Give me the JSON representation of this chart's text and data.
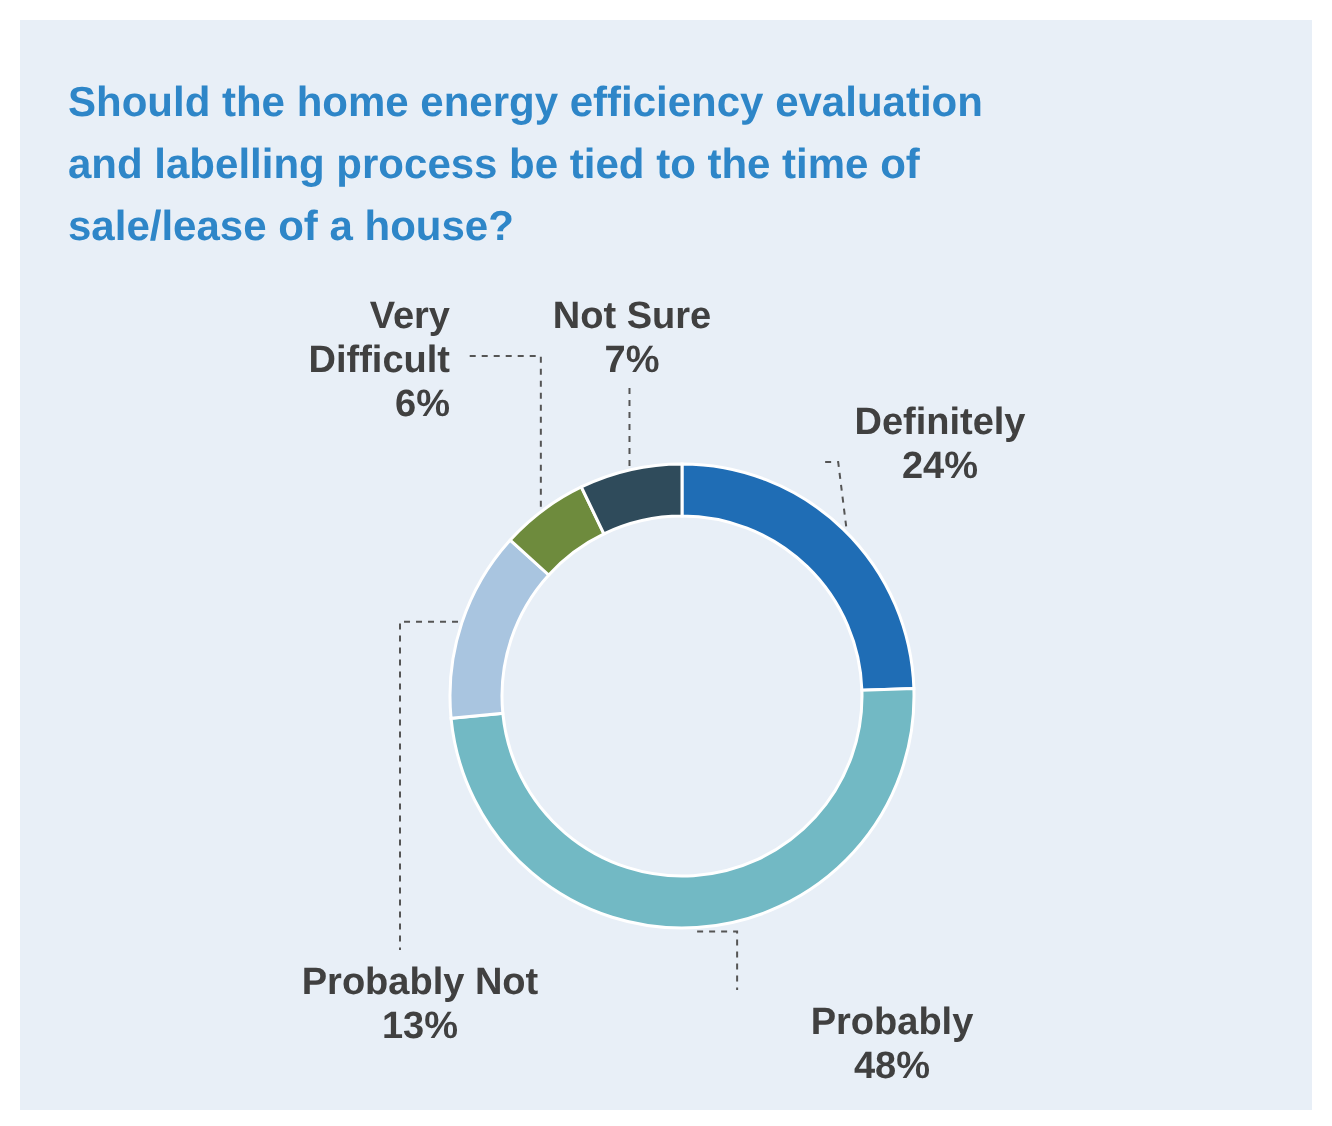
{
  "chart_data": {
    "type": "donut",
    "title": "Should the home energy efficiency evaluation and labelling process be tied to the time of sale/lease of a house?",
    "categories": [
      "Definitely",
      "Probably",
      "Probably Not",
      "Very Difficult",
      "Not Sure"
    ],
    "values": [
      24,
      48,
      13,
      6,
      7
    ],
    "colors": [
      "#1f6db5",
      "#72b9c4",
      "#a9c5e0",
      "#6e8b3d",
      "#2f4b5b"
    ],
    "value_labels": [
      "24%",
      "48%",
      "13%",
      "6%",
      "7%"
    ]
  }
}
